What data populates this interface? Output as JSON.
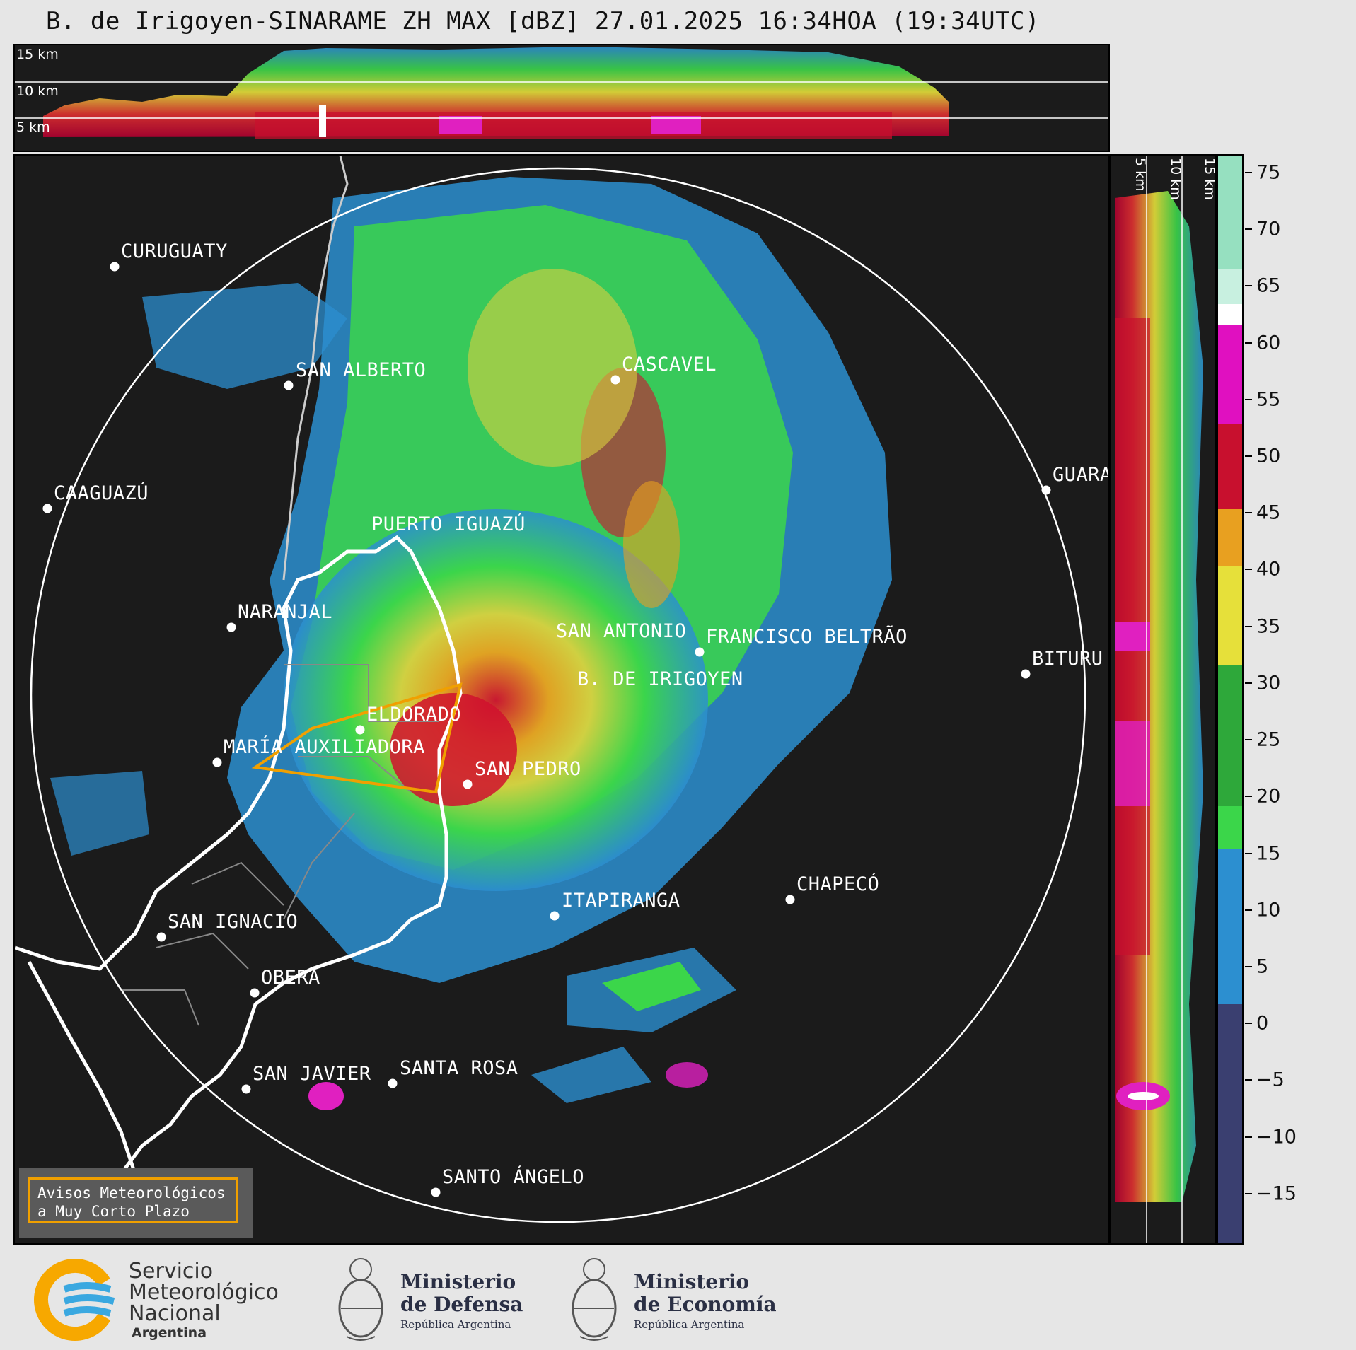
{
  "title": "B. de Irigoyen-SINARAME ZH MAX [dBZ] 27.01.2025 16:34HOA (19:34UTC)",
  "altitude_labels": [
    "15 km",
    "10 km",
    "5 km"
  ],
  "colorbar": {
    "ticks": [
      "75",
      "70",
      "65",
      "60",
      "55",
      "50",
      "45",
      "40",
      "35",
      "30",
      "25",
      "20",
      "15",
      "10",
      "5",
      "0",
      "−5",
      "−10",
      "−15"
    ]
  },
  "cities": [
    {
      "name": "CURUGUATY"
    },
    {
      "name": "SAN ALBERTO"
    },
    {
      "name": "CASCAVEL"
    },
    {
      "name": "CAAGUAZÚ"
    },
    {
      "name": "GUARA"
    },
    {
      "name": "PUERTO IGUAZÚ"
    },
    {
      "name": "NARANJAL"
    },
    {
      "name": "SAN ANTONIO"
    },
    {
      "name": "FRANCISCO BELTRÃO"
    },
    {
      "name": "BITURU"
    },
    {
      "name": "B. DE IRIGOYEN"
    },
    {
      "name": "ELDORADO"
    },
    {
      "name": "MARÍA AUXILIADORA"
    },
    {
      "name": "SAN PEDRO"
    },
    {
      "name": "CHAPECÓ"
    },
    {
      "name": "ITAPIRANGA"
    },
    {
      "name": "SAN IGNACIO"
    },
    {
      "name": "OBERÁ"
    },
    {
      "name": "SAN JAVIER"
    },
    {
      "name": "SANTA ROSA"
    },
    {
      "name": "SANTO ÁNGELO"
    }
  ],
  "avisos": {
    "line1": "Avisos Meteorológicos",
    "line2": "a Muy Corto Plazo"
  },
  "footer": {
    "smn": {
      "line1": "Servicio",
      "line2": "Meteorológico",
      "line3": "Nacional",
      "line4": "Argentina"
    },
    "defensa": {
      "line1": "Ministerio",
      "line2": "de Defensa",
      "line3": "República Argentina"
    },
    "economia": {
      "line1": "Ministerio",
      "line2": "de Economía",
      "line3": "República Argentina"
    }
  },
  "colors": {
    "background": "#1b1b1b",
    "range_ring": "#ffffff",
    "border": "#ffffff",
    "province_lines": "#888888",
    "warning_polygon": "#f0a000"
  }
}
